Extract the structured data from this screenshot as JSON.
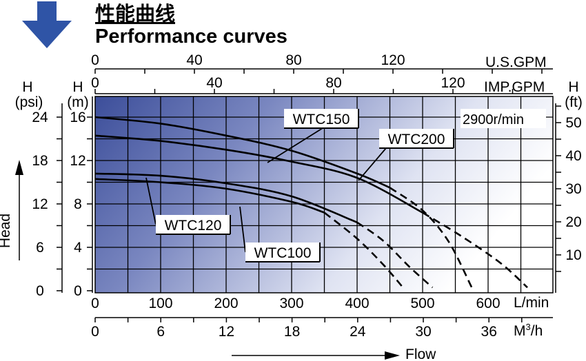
{
  "header": {
    "title_cn": "性能曲线",
    "title_en": "Performance curves",
    "arrow_icon": "down-arrow-icon"
  },
  "chart_data": {
    "type": "line",
    "speed_label": "2900r/min",
    "axes": {
      "flow_lmin": {
        "label": "L/min",
        "range": [
          0,
          700
        ],
        "ticks": [
          0,
          100,
          200,
          300,
          400,
          500,
          600
        ]
      },
      "flow_m3h": {
        "label": "M³/h",
        "label_base": "M",
        "label_sup": "3",
        "label_tail": "/h",
        "range": [
          0,
          42
        ],
        "ticks": [
          0,
          6,
          12,
          18,
          24,
          30,
          36
        ]
      },
      "usgpm": {
        "label": "U.S.GPM",
        "range": [
          0,
          185
        ],
        "ticks": [
          0,
          40,
          80,
          120
        ]
      },
      "impgpm": {
        "label": "IMP.GPM",
        "range": [
          0,
          154
        ],
        "ticks": [
          0,
          40,
          80,
          120
        ]
      },
      "head_m": {
        "label": "H",
        "unit": "(m)",
        "range": [
          0,
          18
        ],
        "ticks": [
          0,
          4,
          8,
          12,
          16
        ]
      },
      "head_psi": {
        "label": "H",
        "unit": "(psi)",
        "ticks": [
          0,
          6,
          12,
          18,
          24
        ]
      },
      "head_ft": {
        "label": "H",
        "unit": "(ft)",
        "ticks": [
          10,
          20,
          30,
          40,
          50
        ]
      },
      "head_title": "Head",
      "flow_title": "Flow"
    },
    "grid": true,
    "series": [
      {
        "name": "WTC150",
        "solid": [
          [
            0,
            16
          ],
          [
            100,
            15.4
          ],
          [
            200,
            14.3
          ],
          [
            300,
            12.9
          ],
          [
            400,
            10.8
          ],
          [
            450,
            9.5
          ]
        ],
        "dashed": [
          [
            450,
            9.5
          ],
          [
            500,
            7.4
          ],
          [
            540,
            4.5
          ],
          [
            575,
            0.3
          ]
        ]
      },
      {
        "name": "WTC200",
        "solid": [
          [
            0,
            14.3
          ],
          [
            100,
            13.8
          ],
          [
            200,
            13
          ],
          [
            300,
            11.9
          ],
          [
            400,
            10.4
          ],
          [
            500,
            7.2
          ]
        ],
        "dashed": [
          [
            500,
            7.2
          ],
          [
            560,
            5
          ],
          [
            620,
            2.5
          ],
          [
            660,
            0.3
          ]
        ]
      },
      {
        "name": "WTC120",
        "solid": [
          [
            0,
            10.8
          ],
          [
            100,
            10.6
          ],
          [
            200,
            9.9
          ],
          [
            300,
            8.7
          ],
          [
            400,
            6.3
          ]
        ],
        "dashed": [
          [
            400,
            6.3
          ],
          [
            440,
            4.6
          ],
          [
            480,
            2.2
          ],
          [
            515,
            0.3
          ]
        ]
      },
      {
        "name": "WTC100",
        "solid": [
          [
            0,
            10.3
          ],
          [
            100,
            10
          ],
          [
            200,
            9.4
          ],
          [
            300,
            8.2
          ],
          [
            350,
            7.2
          ]
        ],
        "dashed": [
          [
            350,
            7.2
          ],
          [
            400,
            4.8
          ],
          [
            440,
            2.4
          ],
          [
            470,
            0.3
          ]
        ]
      }
    ],
    "labels": [
      {
        "text": "WTC150"
      },
      {
        "text": "WTC200"
      },
      {
        "text": "WTC120"
      },
      {
        "text": "WTC100"
      }
    ]
  }
}
